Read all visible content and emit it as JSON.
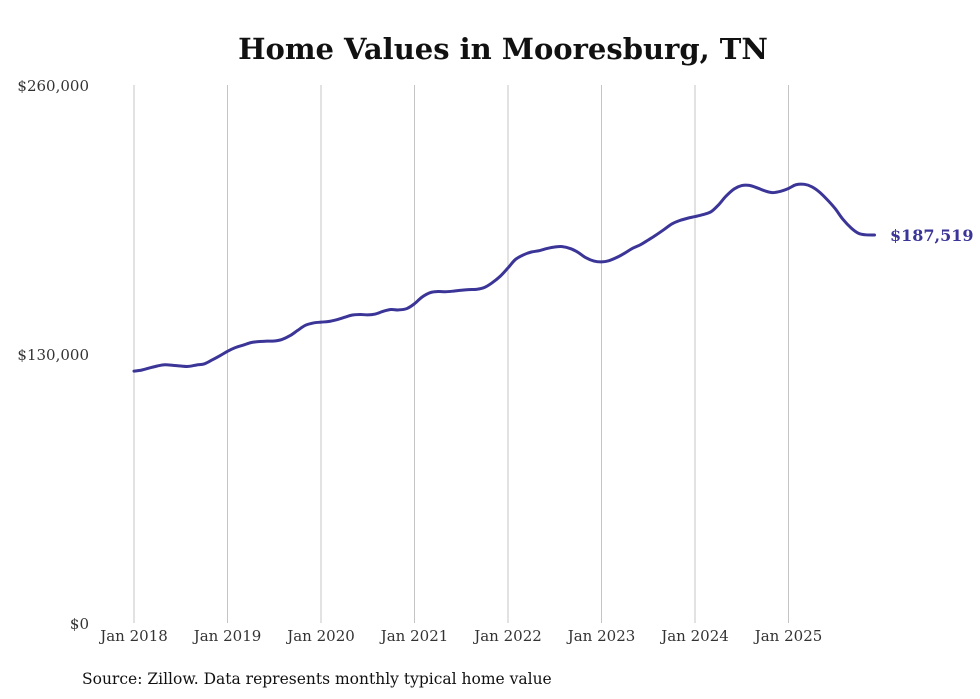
{
  "chart_data": {
    "type": "line",
    "title": "Home Values in Mooresburg, TN",
    "xlabel": "",
    "ylabel": "",
    "ylim": [
      0,
      260000
    ],
    "y_ticks": [
      {
        "value": 0,
        "label": "$0"
      },
      {
        "value": 130000,
        "label": "$130,000"
      },
      {
        "value": 260000,
        "label": "$260,000"
      }
    ],
    "x_ticks": [
      {
        "value": 2018.0,
        "label": "Jan 2018"
      },
      {
        "value": 2019.0,
        "label": "Jan 2019"
      },
      {
        "value": 2020.0,
        "label": "Jan 2020"
      },
      {
        "value": 2021.0,
        "label": "Jan 2021"
      },
      {
        "value": 2022.0,
        "label": "Jan 2022"
      },
      {
        "value": 2023.0,
        "label": "Jan 2023"
      },
      {
        "value": 2024.0,
        "label": "Jan 2024"
      },
      {
        "value": 2025.0,
        "label": "Jan 2025"
      }
    ],
    "xlim": [
      2018.0,
      2026.0
    ],
    "grid": "vertical",
    "series": [
      {
        "name": "Typical home value",
        "color": "#3b3597",
        "end_label": "$187,519",
        "x": [
          2018.0,
          2018.08,
          2018.17,
          2018.25,
          2018.33,
          2018.42,
          2018.5,
          2018.58,
          2018.67,
          2018.75,
          2018.83,
          2018.92,
          2019.0,
          2019.08,
          2019.17,
          2019.25,
          2019.33,
          2019.42,
          2019.5,
          2019.58,
          2019.67,
          2019.75,
          2019.83,
          2019.92,
          2020.0,
          2020.08,
          2020.17,
          2020.25,
          2020.33,
          2020.42,
          2020.5,
          2020.58,
          2020.67,
          2020.75,
          2020.83,
          2020.92,
          2021.0,
          2021.08,
          2021.17,
          2021.25,
          2021.33,
          2021.42,
          2021.5,
          2021.58,
          2021.67,
          2021.75,
          2021.83,
          2021.92,
          2022.0,
          2022.08,
          2022.17,
          2022.25,
          2022.33,
          2022.42,
          2022.5,
          2022.58,
          2022.67,
          2022.75,
          2022.83,
          2022.92,
          2023.0,
          2023.08,
          2023.17,
          2023.25,
          2023.33,
          2023.42,
          2023.5,
          2023.58,
          2023.67,
          2023.75,
          2023.83,
          2023.92,
          2024.0,
          2024.08,
          2024.17,
          2024.25,
          2024.33,
          2024.42,
          2024.5,
          2024.58,
          2024.67,
          2024.75,
          2024.83,
          2024.92,
          2025.0,
          2025.08,
          2025.17,
          2025.25,
          2025.33,
          2025.42,
          2025.5,
          2025.58,
          2025.67,
          2025.75,
          2025.83,
          2025.92
        ],
        "values": [
          121700,
          122200,
          123300,
          124200,
          124800,
          124500,
          124200,
          124000,
          124700,
          125200,
          127000,
          129200,
          131300,
          133000,
          134300,
          135500,
          136000,
          136200,
          136300,
          137000,
          138900,
          141400,
          143800,
          145000,
          145400,
          145700,
          146600,
          147700,
          148800,
          149100,
          148900,
          149300,
          150700,
          151500,
          151300,
          152000,
          154300,
          157500,
          159700,
          160200,
          160100,
          160400,
          160800,
          161100,
          161300,
          162200,
          164400,
          167700,
          171600,
          175700,
          178000,
          179300,
          179900,
          181000,
          181700,
          181900,
          180900,
          179100,
          176600,
          174900,
          174500,
          175100,
          176800,
          178800,
          181000,
          182900,
          185100,
          187400,
          190200,
          192800,
          194400,
          195600,
          196400,
          197300,
          198700,
          202000,
          206200,
          209800,
          211400,
          211500,
          210200,
          208800,
          208000,
          208700,
          210000,
          211800,
          212000,
          210800,
          208300,
          204300,
          200200,
          195200,
          190900,
          188300,
          187600,
          187519
        ]
      }
    ]
  },
  "footer": {
    "source": "Source: Zillow. Data represents monthly typical home value"
  }
}
